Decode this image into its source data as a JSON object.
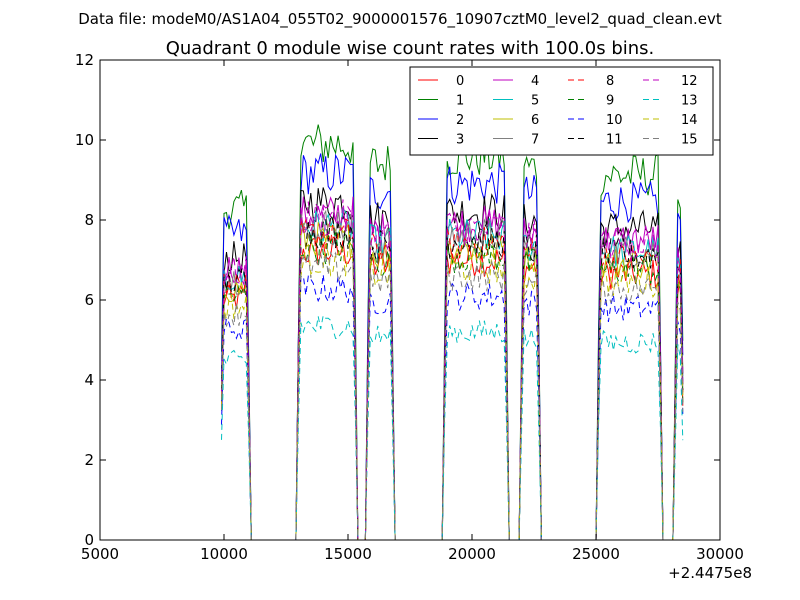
{
  "chart_data": {
    "type": "line",
    "suptitle": "Data file: modeM0/AS1A04_055T02_9000001576_10907cztM0_level2_quad_clean.evt",
    "title": "Quadrant 0 module wise count rates with 100.0s bins.",
    "xlabel": "",
    "ylabel": "",
    "x_offset_label": "+2.4475e8",
    "xlim": [
      5000,
      30000
    ],
    "ylim": [
      0,
      12
    ],
    "xticks": [
      5000,
      10000,
      15000,
      20000,
      25000,
      30000
    ],
    "yticks": [
      0,
      2,
      4,
      6,
      8,
      10,
      12
    ],
    "grid": false,
    "legend_position": "top-right",
    "legend_columns": 4,
    "gti": [
      [
        9900,
        11000
      ],
      [
        13000,
        15300
      ],
      [
        15800,
        16800
      ],
      [
        18900,
        21400
      ],
      [
        22000,
        22700
      ],
      [
        25100,
        27600
      ],
      [
        28200,
        28500
      ]
    ],
    "series": [
      {
        "name": "0",
        "color": "#ff0000",
        "style": "solid",
        "level": 7.0
      },
      {
        "name": "1",
        "color": "#008000",
        "style": "solid",
        "level": 9.6
      },
      {
        "name": "2",
        "color": "#0000ff",
        "style": "solid",
        "level": 8.9
      },
      {
        "name": "3",
        "color": "#000000",
        "style": "solid",
        "level": 8.2
      },
      {
        "name": "4",
        "color": "#bf00bf",
        "style": "solid",
        "level": 7.9
      },
      {
        "name": "5",
        "color": "#00bfbf",
        "style": "solid",
        "level": 7.6
      },
      {
        "name": "6",
        "color": "#bfbf00",
        "style": "solid",
        "level": 7.3
      },
      {
        "name": "7",
        "color": "#808080",
        "style": "solid",
        "level": 7.6
      },
      {
        "name": "8",
        "color": "#ff0000",
        "style": "dashed",
        "level": 7.4
      },
      {
        "name": "9",
        "color": "#008000",
        "style": "dashed",
        "level": 7.1
      },
      {
        "name": "10",
        "color": "#0000ff",
        "style": "dashed",
        "level": 6.1
      },
      {
        "name": "11",
        "color": "#000000",
        "style": "dashed",
        "level": 7.5
      },
      {
        "name": "12",
        "color": "#bf00bf",
        "style": "dashed",
        "level": 7.8
      },
      {
        "name": "13",
        "color": "#00bfbf",
        "style": "dashed",
        "level": 5.2
      },
      {
        "name": "14",
        "color": "#bfbf00",
        "style": "dashed",
        "level": 6.8
      },
      {
        "name": "15",
        "color": "#808080",
        "style": "dashed",
        "level": 6.6
      }
    ]
  }
}
